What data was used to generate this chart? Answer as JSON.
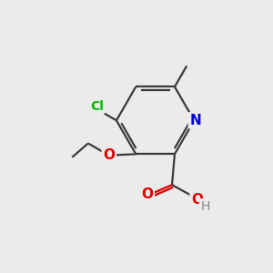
{
  "bg_color": "#ebebeb",
  "bond_color": "#3a3a3a",
  "bond_width": 1.6,
  "atom_colors": {
    "C": "#3a3a3a",
    "N": "#0000dd",
    "O": "#dd0000",
    "Cl": "#00bb00",
    "H": "#888888"
  },
  "figsize": [
    3.0,
    3.0
  ],
  "dpi": 100
}
